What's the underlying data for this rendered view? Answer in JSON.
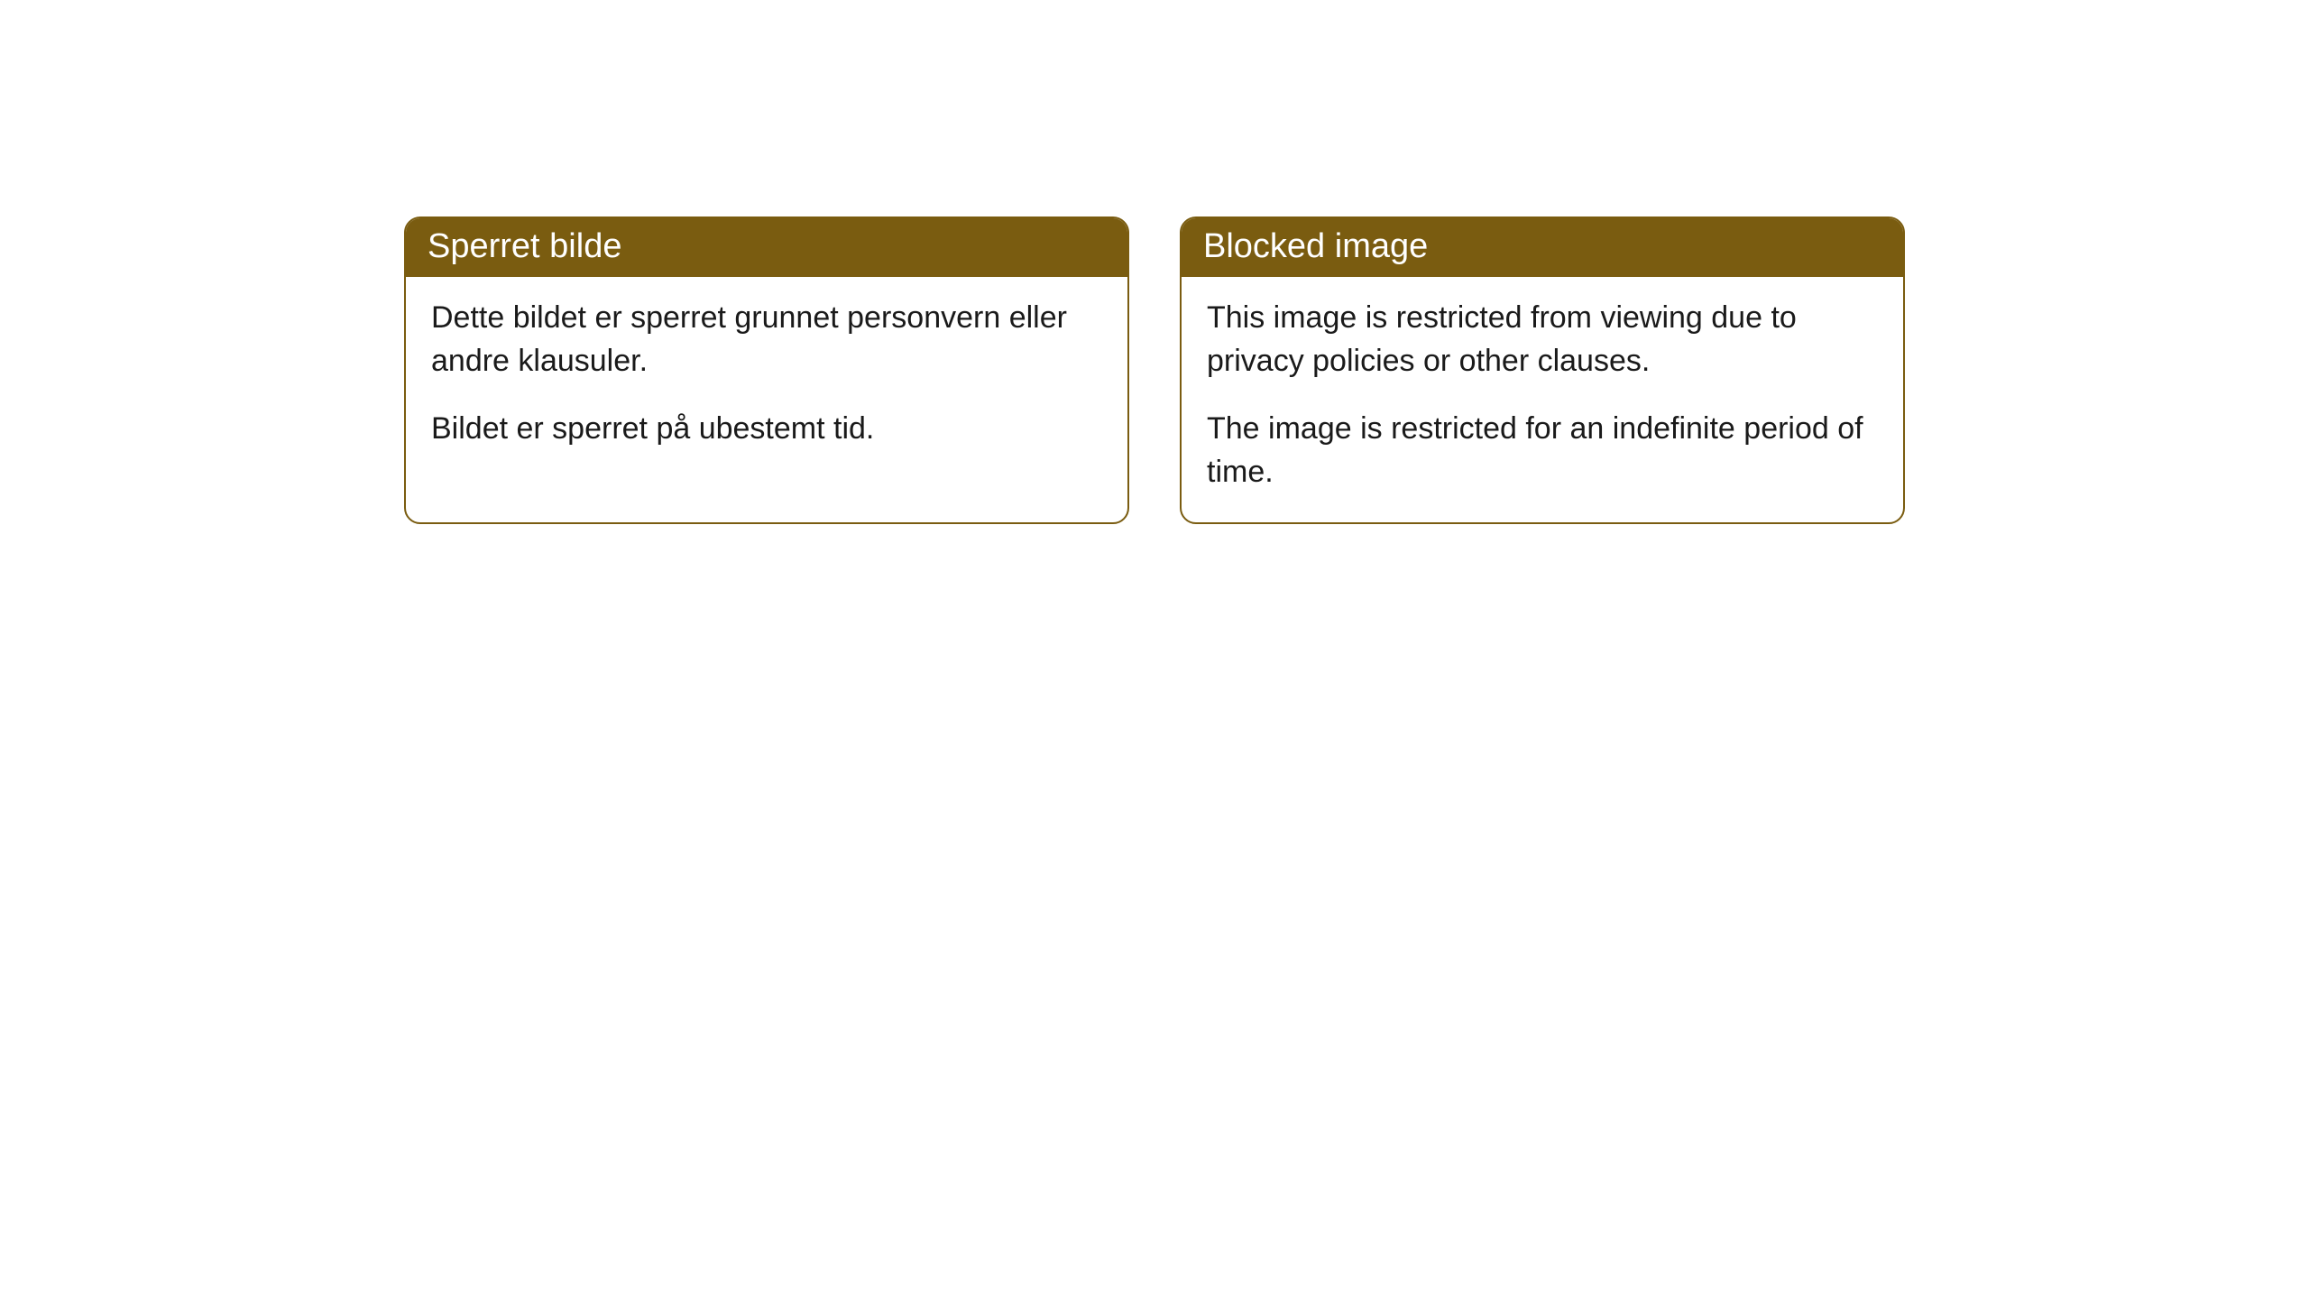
{
  "cards": [
    {
      "title": "Sperret bilde",
      "paragraph1": "Dette bildet er sperret grunnet personvern eller andre klausuler.",
      "paragraph2": "Bildet er sperret på ubestemt tid."
    },
    {
      "title": "Blocked image",
      "paragraph1": "This image is restricted from viewing due to privacy policies or other clauses.",
      "paragraph2": "The image is restricted for an indefinite period of time."
    }
  ],
  "style": {
    "header_bg_color": "#7a5c10",
    "header_text_color": "#ffffff",
    "border_color": "#7a5c10",
    "body_bg_color": "#ffffff",
    "body_text_color": "#1a1a1a",
    "title_fontsize": 38,
    "body_fontsize": 34,
    "border_radius": 18
  }
}
